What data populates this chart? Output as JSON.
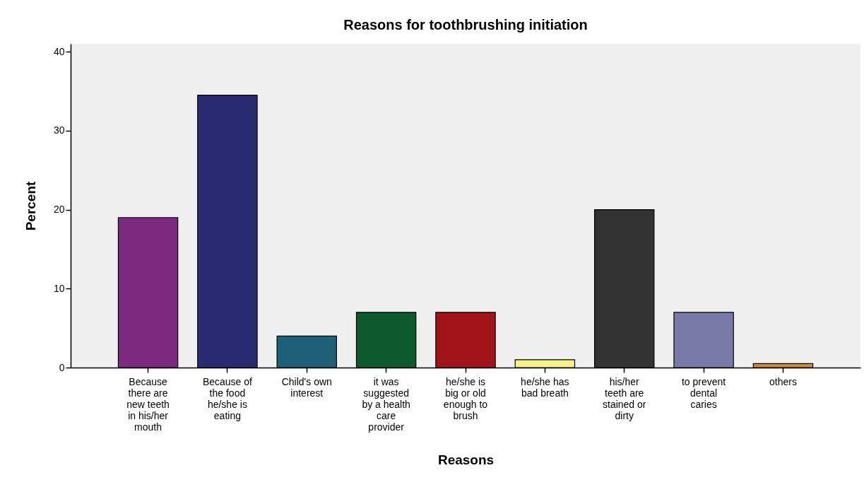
{
  "chart_data": {
    "type": "bar",
    "title": "Reasons for toothbrushing initiation",
    "xlabel": "Reasons",
    "ylabel": "Percent",
    "categories": [
      "Because there are new teeth in his/her mouth",
      "Because of the food he/she is eating",
      "Child's own interest",
      "it was suggested by a health care provider",
      "he/she is big or old enough to brush",
      "he/she has bad breath",
      "his/her teeth are stained or dirty",
      "to prevent dental caries",
      "others"
    ],
    "values": [
      19,
      34.5,
      4,
      7,
      7,
      1,
      20,
      7,
      0.5
    ],
    "colors": [
      "#7b2a7e",
      "#2a2a72",
      "#1e6078",
      "#0d5a2e",
      "#a0141a",
      "#f5f08a",
      "#333333",
      "#7a7aa8",
      "#d08a3a"
    ],
    "ylim": [
      0,
      41
    ],
    "yticks": [
      0,
      10,
      20,
      30,
      40
    ]
  }
}
